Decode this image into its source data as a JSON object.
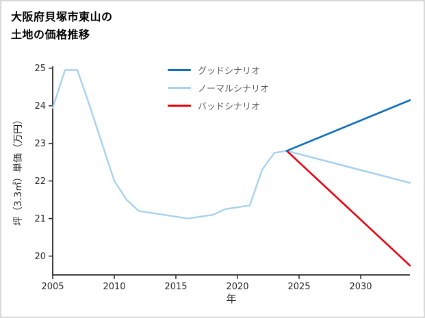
{
  "title": {
    "line1": "大阪府貝塚市東山の",
    "line2": "土地の価格推移"
  },
  "chart_data": {
    "type": "line",
    "title": "大阪府貝塚市東山の土地の価格推移",
    "xlabel": "年",
    "ylabel": "坪（3.3㎡）単価（万円）",
    "xlim": [
      2005,
      2034
    ],
    "ylim": [
      19.5,
      25.05
    ],
    "xticks": [
      2005,
      2010,
      2015,
      2020,
      2025,
      2030
    ],
    "yticks": [
      20,
      21,
      22,
      23,
      24,
      25
    ],
    "grid": false,
    "legend_position": "upper-center-inside",
    "axis_color": "#262626",
    "series": [
      {
        "name": "",
        "role": "historical",
        "color": "#a7d1ee",
        "width": 2.4,
        "in_legend": false,
        "legend_order": 0,
        "x": [
          2005,
          2006,
          2007,
          2008,
          2009,
          2010,
          2011,
          2012,
          2013,
          2014,
          2015,
          2016,
          2017,
          2018,
          2019,
          2020,
          2021,
          2022,
          2023,
          2024
        ],
        "y": [
          23.95,
          24.95,
          24.95,
          24.0,
          23.0,
          22.0,
          21.5,
          21.2,
          21.15,
          21.1,
          21.05,
          21.0,
          21.05,
          21.1,
          21.25,
          21.3,
          21.35,
          22.3,
          22.75,
          22.8
        ]
      },
      {
        "name": "ノーマルシナリオ",
        "role": "normal-scenario",
        "color": "#a7d1ee",
        "width": 2.6,
        "in_legend": true,
        "legend_order": 2,
        "x": [
          2024,
          2034
        ],
        "y": [
          22.8,
          21.95
        ]
      },
      {
        "name": "バッドシナリオ",
        "role": "bad-scenario",
        "color": "#e8000d",
        "width": 2.6,
        "in_legend": true,
        "legend_order": 3,
        "x": [
          2024,
          2034
        ],
        "y": [
          22.8,
          19.75
        ]
      },
      {
        "name": "グッドシナリオ",
        "role": "good-scenario",
        "color": "#0e6eb8",
        "width": 2.6,
        "in_legend": true,
        "legend_order": 1,
        "x": [
          2024,
          2034
        ],
        "y": [
          22.8,
          24.15
        ]
      }
    ]
  }
}
